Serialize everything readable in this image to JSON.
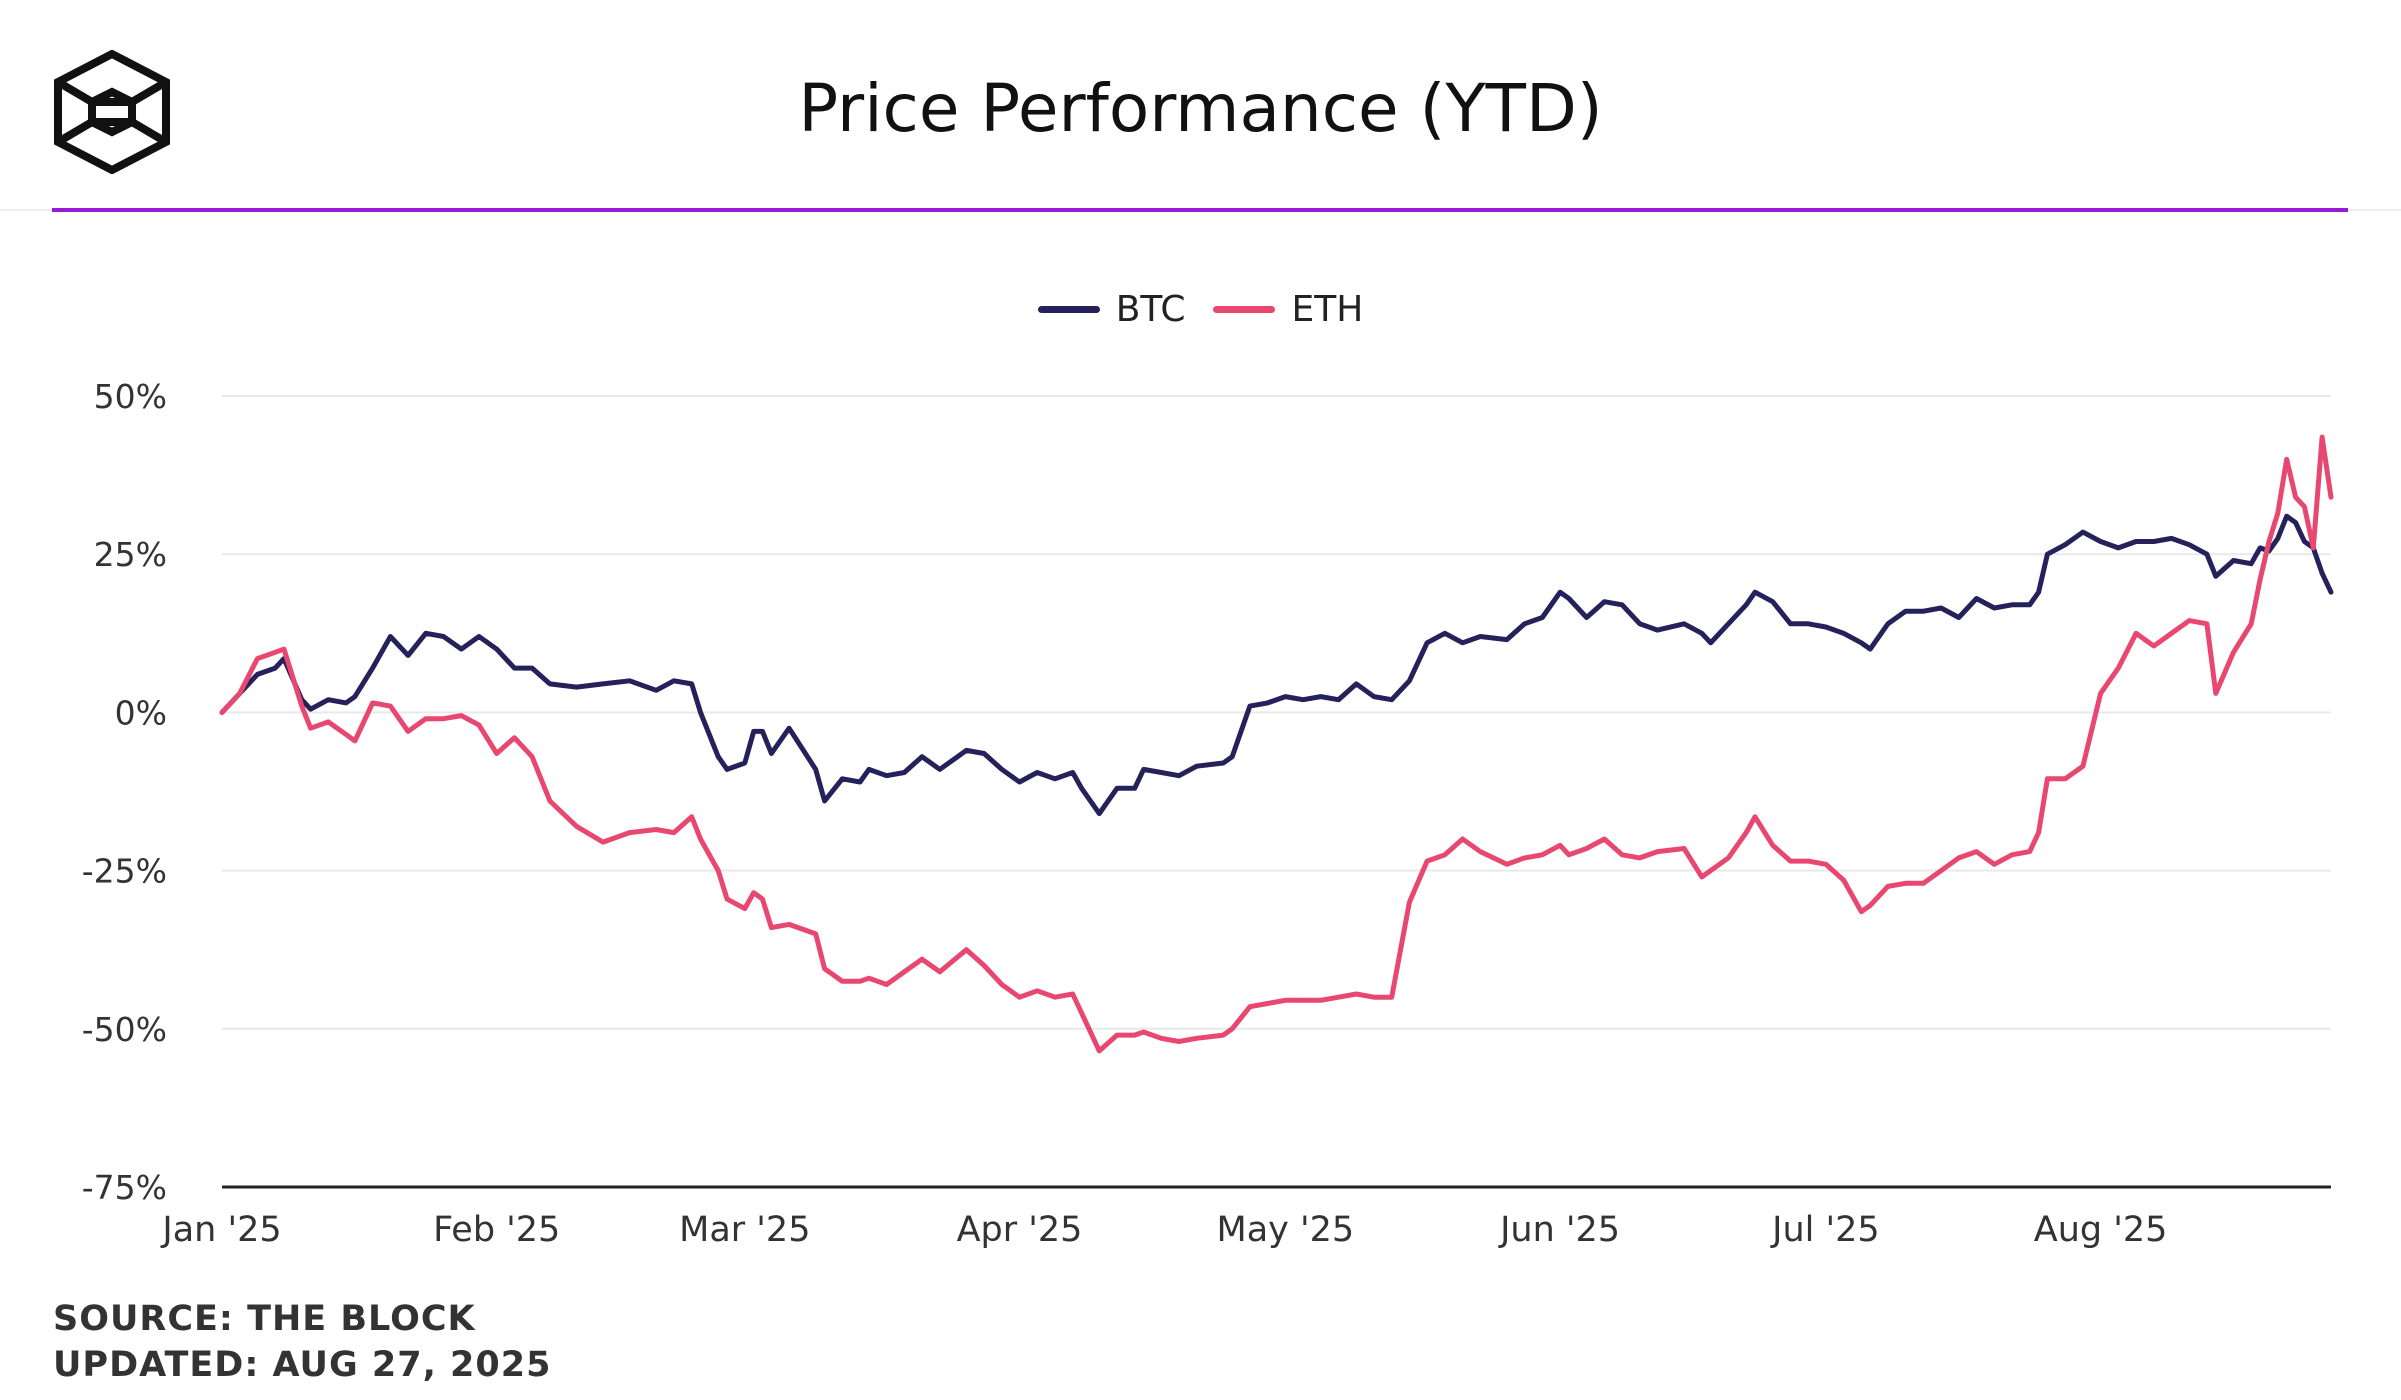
{
  "title": "Price Performance (YTD)",
  "brand": {
    "logo_icon": "the-block-cube-icon",
    "accent": "#9b19d6"
  },
  "legend": [
    {
      "label": "BTC",
      "color": "#25215a"
    },
    {
      "label": "ETH",
      "color": "#e8486f"
    }
  ],
  "footer": {
    "source": "SOURCE: THE BLOCK",
    "updated": "UPDATED: AUG 27, 2025"
  },
  "chart_data": {
    "type": "line",
    "title": "Price Performance (YTD)",
    "xlabel": "",
    "ylabel": "",
    "ylim": [
      -75,
      50
    ],
    "y_ticks": [
      50,
      25,
      0,
      -25,
      -50,
      -75
    ],
    "y_tick_labels": [
      "50%",
      "25%",
      "0%",
      "-25%",
      "-50%",
      "-75%"
    ],
    "x_tick_labels": [
      "Jan '25",
      "Feb '25",
      "Mar '25",
      "Apr '25",
      "May '25",
      "Jun '25",
      "Jul '25",
      "Aug '25"
    ],
    "x_tick_dates": [
      "2025-01-01",
      "2025-02-01",
      "2025-03-01",
      "2025-04-01",
      "2025-05-01",
      "2025-06-01",
      "2025-07-01",
      "2025-08-01"
    ],
    "xlim": [
      "2025-01-01",
      "2025-08-27"
    ],
    "grid": true,
    "legend_position": "top-center",
    "series": [
      {
        "name": "BTC",
        "color": "#25215a",
        "points": [
          [
            "2025-01-01",
            0
          ],
          [
            "2025-01-03",
            3
          ],
          [
            "2025-01-05",
            6
          ],
          [
            "2025-01-07",
            7
          ],
          [
            "2025-01-08",
            8.5
          ],
          [
            "2025-01-10",
            2
          ],
          [
            "2025-01-11",
            0.5
          ],
          [
            "2025-01-13",
            2
          ],
          [
            "2025-01-15",
            1.5
          ],
          [
            "2025-01-16",
            2.5
          ],
          [
            "2025-01-18",
            7
          ],
          [
            "2025-01-20",
            12
          ],
          [
            "2025-01-22",
            9
          ],
          [
            "2025-01-24",
            12.5
          ],
          [
            "2025-01-26",
            12
          ],
          [
            "2025-01-28",
            10
          ],
          [
            "2025-01-30",
            12
          ],
          [
            "2025-02-01",
            10
          ],
          [
            "2025-02-03",
            7
          ],
          [
            "2025-02-05",
            7
          ],
          [
            "2025-02-07",
            4.5
          ],
          [
            "2025-02-10",
            4
          ],
          [
            "2025-02-13",
            4.5
          ],
          [
            "2025-02-16",
            5
          ],
          [
            "2025-02-19",
            3.5
          ],
          [
            "2025-02-21",
            5
          ],
          [
            "2025-02-23",
            4.5
          ],
          [
            "2025-02-24",
            0
          ],
          [
            "2025-02-26",
            -7
          ],
          [
            "2025-02-27",
            -9
          ],
          [
            "2025-03-01",
            -8
          ],
          [
            "2025-03-02",
            -3
          ],
          [
            "2025-03-03",
            -3
          ],
          [
            "2025-03-04",
            -6.5
          ],
          [
            "2025-03-06",
            -2.5
          ],
          [
            "2025-03-09",
            -9
          ],
          [
            "2025-03-10",
            -14
          ],
          [
            "2025-03-12",
            -10.5
          ],
          [
            "2025-03-14",
            -11
          ],
          [
            "2025-03-15",
            -9
          ],
          [
            "2025-03-17",
            -10
          ],
          [
            "2025-03-19",
            -9.5
          ],
          [
            "2025-03-21",
            -7
          ],
          [
            "2025-03-23",
            -9
          ],
          [
            "2025-03-26",
            -6
          ],
          [
            "2025-03-28",
            -6.5
          ],
          [
            "2025-03-30",
            -9
          ],
          [
            "2025-04-01",
            -11
          ],
          [
            "2025-04-03",
            -9.5
          ],
          [
            "2025-04-05",
            -10.5
          ],
          [
            "2025-04-07",
            -9.5
          ],
          [
            "2025-04-08",
            -12
          ],
          [
            "2025-04-10",
            -16
          ],
          [
            "2025-04-12",
            -12
          ],
          [
            "2025-04-14",
            -12
          ],
          [
            "2025-04-15",
            -9
          ],
          [
            "2025-04-17",
            -9.5
          ],
          [
            "2025-04-19",
            -10
          ],
          [
            "2025-04-21",
            -8.5
          ],
          [
            "2025-04-24",
            -8
          ],
          [
            "2025-04-25",
            -7
          ],
          [
            "2025-04-27",
            1
          ],
          [
            "2025-04-29",
            1.5
          ],
          [
            "2025-05-01",
            2.5
          ],
          [
            "2025-05-03",
            2
          ],
          [
            "2025-05-05",
            2.5
          ],
          [
            "2025-05-07",
            2
          ],
          [
            "2025-05-09",
            4.5
          ],
          [
            "2025-05-11",
            2.5
          ],
          [
            "2025-05-13",
            2
          ],
          [
            "2025-05-15",
            5
          ],
          [
            "2025-05-17",
            11
          ],
          [
            "2025-05-19",
            12.5
          ],
          [
            "2025-05-21",
            11
          ],
          [
            "2025-05-23",
            12
          ],
          [
            "2025-05-26",
            11.5
          ],
          [
            "2025-05-28",
            14
          ],
          [
            "2025-05-30",
            15
          ],
          [
            "2025-06-01",
            19
          ],
          [
            "2025-06-02",
            18
          ],
          [
            "2025-06-04",
            15
          ],
          [
            "2025-06-06",
            17.5
          ],
          [
            "2025-06-08",
            17
          ],
          [
            "2025-06-10",
            14
          ],
          [
            "2025-06-12",
            13
          ],
          [
            "2025-06-15",
            14
          ],
          [
            "2025-06-17",
            12.5
          ],
          [
            "2025-06-18",
            11
          ],
          [
            "2025-06-20",
            14
          ],
          [
            "2025-06-22",
            17
          ],
          [
            "2025-06-23",
            19
          ],
          [
            "2025-06-25",
            17.5
          ],
          [
            "2025-06-27",
            14
          ],
          [
            "2025-06-29",
            14
          ],
          [
            "2025-07-01",
            13.5
          ],
          [
            "2025-07-03",
            12.5
          ],
          [
            "2025-07-05",
            11
          ],
          [
            "2025-07-06",
            10
          ],
          [
            "2025-07-08",
            14
          ],
          [
            "2025-07-10",
            16
          ],
          [
            "2025-07-12",
            16
          ],
          [
            "2025-07-14",
            16.5
          ],
          [
            "2025-07-16",
            15
          ],
          [
            "2025-07-18",
            18
          ],
          [
            "2025-07-20",
            16.5
          ],
          [
            "2025-07-22",
            17
          ],
          [
            "2025-07-24",
            17
          ],
          [
            "2025-07-25",
            19
          ],
          [
            "2025-07-26",
            25
          ],
          [
            "2025-07-28",
            26.5
          ],
          [
            "2025-07-30",
            28.5
          ],
          [
            "2025-08-01",
            27
          ],
          [
            "2025-08-03",
            26
          ],
          [
            "2025-08-05",
            27
          ],
          [
            "2025-08-07",
            27
          ],
          [
            "2025-08-09",
            27.5
          ],
          [
            "2025-08-11",
            26.5
          ],
          [
            "2025-08-13",
            25
          ],
          [
            "2025-08-14",
            21.5
          ],
          [
            "2025-08-16",
            24
          ],
          [
            "2025-08-18",
            23.5
          ],
          [
            "2025-08-19",
            26
          ],
          [
            "2025-08-20",
            25.5
          ],
          [
            "2025-08-21",
            27.5
          ],
          [
            "2025-08-22",
            31
          ],
          [
            "2025-08-23",
            30
          ],
          [
            "2025-08-24",
            27
          ],
          [
            "2025-08-25",
            26
          ],
          [
            "2025-08-26",
            22
          ],
          [
            "2025-08-27",
            19
          ]
        ]
      },
      {
        "name": "ETH",
        "color": "#e8486f",
        "points": [
          [
            "2025-01-01",
            0
          ],
          [
            "2025-01-03",
            3
          ],
          [
            "2025-01-05",
            8.5
          ],
          [
            "2025-01-07",
            9.5
          ],
          [
            "2025-01-08",
            10
          ],
          [
            "2025-01-10",
            1
          ],
          [
            "2025-01-11",
            -2.5
          ],
          [
            "2025-01-13",
            -1.5
          ],
          [
            "2025-01-15",
            -3.5
          ],
          [
            "2025-01-16",
            -4.5
          ],
          [
            "2025-01-18",
            1.5
          ],
          [
            "2025-01-20",
            1
          ],
          [
            "2025-01-22",
            -3
          ],
          [
            "2025-01-24",
            -1
          ],
          [
            "2025-01-26",
            -1
          ],
          [
            "2025-01-28",
            -0.5
          ],
          [
            "2025-01-30",
            -2
          ],
          [
            "2025-02-01",
            -6.5
          ],
          [
            "2025-02-03",
            -4
          ],
          [
            "2025-02-05",
            -7
          ],
          [
            "2025-02-07",
            -14
          ],
          [
            "2025-02-10",
            -18
          ],
          [
            "2025-02-13",
            -20.5
          ],
          [
            "2025-02-16",
            -19
          ],
          [
            "2025-02-19",
            -18.5
          ],
          [
            "2025-02-21",
            -19
          ],
          [
            "2025-02-23",
            -16.5
          ],
          [
            "2025-02-24",
            -20
          ],
          [
            "2025-02-26",
            -25
          ],
          [
            "2025-02-27",
            -29.5
          ],
          [
            "2025-03-01",
            -31
          ],
          [
            "2025-03-02",
            -28.5
          ],
          [
            "2025-03-03",
            -29.5
          ],
          [
            "2025-03-04",
            -34
          ],
          [
            "2025-03-06",
            -33.5
          ],
          [
            "2025-03-09",
            -35
          ],
          [
            "2025-03-10",
            -40.5
          ],
          [
            "2025-03-12",
            -42.5
          ],
          [
            "2025-03-14",
            -42.5
          ],
          [
            "2025-03-15",
            -42
          ],
          [
            "2025-03-17",
            -43
          ],
          [
            "2025-03-19",
            -41
          ],
          [
            "2025-03-21",
            -39
          ],
          [
            "2025-03-23",
            -41
          ],
          [
            "2025-03-26",
            -37.5
          ],
          [
            "2025-03-28",
            -40
          ],
          [
            "2025-03-30",
            -43
          ],
          [
            "2025-04-01",
            -45
          ],
          [
            "2025-04-03",
            -44
          ],
          [
            "2025-04-05",
            -45
          ],
          [
            "2025-04-07",
            -44.5
          ],
          [
            "2025-04-08",
            -47.5
          ],
          [
            "2025-04-10",
            -53.5
          ],
          [
            "2025-04-12",
            -51
          ],
          [
            "2025-04-14",
            -51
          ],
          [
            "2025-04-15",
            -50.5
          ],
          [
            "2025-04-17",
            -51.5
          ],
          [
            "2025-04-19",
            -52
          ],
          [
            "2025-04-21",
            -51.5
          ],
          [
            "2025-04-24",
            -51
          ],
          [
            "2025-04-25",
            -50
          ],
          [
            "2025-04-27",
            -46.5
          ],
          [
            "2025-04-29",
            -46
          ],
          [
            "2025-05-01",
            -45.5
          ],
          [
            "2025-05-03",
            -45.5
          ],
          [
            "2025-05-05",
            -45.5
          ],
          [
            "2025-05-07",
            -45
          ],
          [
            "2025-05-09",
            -44.5
          ],
          [
            "2025-05-11",
            -45
          ],
          [
            "2025-05-13",
            -45
          ],
          [
            "2025-05-15",
            -30
          ],
          [
            "2025-05-17",
            -23.5
          ],
          [
            "2025-05-19",
            -22.5
          ],
          [
            "2025-05-21",
            -20
          ],
          [
            "2025-05-23",
            -22
          ],
          [
            "2025-05-26",
            -24
          ],
          [
            "2025-05-28",
            -23
          ],
          [
            "2025-05-30",
            -22.5
          ],
          [
            "2025-06-01",
            -21
          ],
          [
            "2025-06-02",
            -22.5
          ],
          [
            "2025-06-04",
            -21.5
          ],
          [
            "2025-06-06",
            -20
          ],
          [
            "2025-06-08",
            -22.5
          ],
          [
            "2025-06-10",
            -23
          ],
          [
            "2025-06-12",
            -22
          ],
          [
            "2025-06-15",
            -21.5
          ],
          [
            "2025-06-17",
            -26
          ],
          [
            "2025-06-18",
            -25
          ],
          [
            "2025-06-20",
            -23
          ],
          [
            "2025-06-22",
            -19
          ],
          [
            "2025-06-23",
            -16.5
          ],
          [
            "2025-06-25",
            -21
          ],
          [
            "2025-06-27",
            -23.5
          ],
          [
            "2025-06-29",
            -23.5
          ],
          [
            "2025-07-01",
            -24
          ],
          [
            "2025-07-03",
            -26.5
          ],
          [
            "2025-07-05",
            -31.5
          ],
          [
            "2025-07-06",
            -30.5
          ],
          [
            "2025-07-08",
            -27.5
          ],
          [
            "2025-07-10",
            -27
          ],
          [
            "2025-07-12",
            -27
          ],
          [
            "2025-07-14",
            -25
          ],
          [
            "2025-07-16",
            -23
          ],
          [
            "2025-07-18",
            -22
          ],
          [
            "2025-07-20",
            -24
          ],
          [
            "2025-07-22",
            -22.5
          ],
          [
            "2025-07-24",
            -22
          ],
          [
            "2025-07-25",
            -19
          ],
          [
            "2025-07-26",
            -10.5
          ],
          [
            "2025-07-28",
            -10.5
          ],
          [
            "2025-07-30",
            -8.5
          ],
          [
            "2025-08-01",
            3
          ],
          [
            "2025-08-03",
            7
          ],
          [
            "2025-08-05",
            12.5
          ],
          [
            "2025-08-07",
            10.5
          ],
          [
            "2025-08-09",
            12.5
          ],
          [
            "2025-08-11",
            14.5
          ],
          [
            "2025-08-13",
            14
          ],
          [
            "2025-08-14",
            3
          ],
          [
            "2025-08-16",
            9.5
          ],
          [
            "2025-08-18",
            14
          ],
          [
            "2025-08-19",
            21
          ],
          [
            "2025-08-20",
            27
          ],
          [
            "2025-08-21",
            31.5
          ],
          [
            "2025-08-22",
            40
          ],
          [
            "2025-08-23",
            34
          ],
          [
            "2025-08-24",
            32.5
          ],
          [
            "2025-08-25",
            26
          ],
          [
            "2025-08-26",
            43.5
          ],
          [
            "2025-08-27",
            34
          ]
        ]
      }
    ]
  }
}
